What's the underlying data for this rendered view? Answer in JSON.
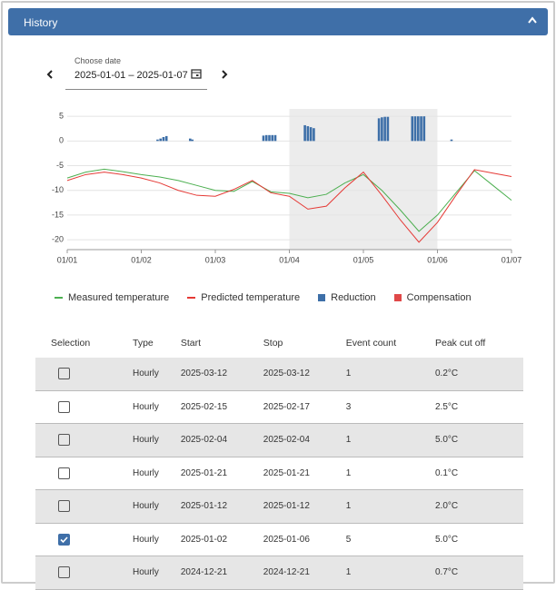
{
  "header": {
    "title": "History"
  },
  "date_picker": {
    "label": "Choose date",
    "value": "2025-01-01 – 2025-01-07"
  },
  "chart": {
    "type": "line",
    "xlim": [
      0,
      6
    ],
    "ylim": [
      -22,
      6.5
    ],
    "xticks": [
      {
        "value": 0,
        "label": "01/01"
      },
      {
        "value": 1,
        "label": "01/02"
      },
      {
        "value": 2,
        "label": "01/03"
      },
      {
        "value": 3,
        "label": "01/04"
      },
      {
        "value": 4,
        "label": "01/05"
      },
      {
        "value": 5,
        "label": "01/06"
      },
      {
        "value": 6,
        "label": "01/07"
      }
    ],
    "yticks": [
      5,
      0,
      -5,
      -10,
      -15,
      -20
    ],
    "grid": true,
    "highlight": [
      3,
      5
    ],
    "x": [
      0,
      0.25,
      0.5,
      0.75,
      1,
      1.25,
      1.5,
      1.75,
      2,
      2.25,
      2.5,
      2.75,
      3,
      3.25,
      3.5,
      3.75,
      4,
      4.25,
      4.5,
      4.75,
      5,
      5.25,
      5.5,
      5.75,
      6
    ],
    "series": [
      {
        "name": "Measured temperature",
        "color": "#4caf50",
        "values": [
          -7.5,
          -6.3,
          -5.7,
          -6.2,
          -6.8,
          -7.3,
          -8.0,
          -9.0,
          -10.0,
          -10.2,
          -8.2,
          -10.3,
          -10.6,
          -11.5,
          -10.8,
          -8.5,
          -6.8,
          -10.0,
          -14.0,
          -18.3,
          -15.0,
          -10.5,
          -6.0,
          -9.0,
          -12.0
        ]
      },
      {
        "name": "Predicted temperature",
        "color": "#e53935",
        "values": [
          -8.0,
          -6.8,
          -6.3,
          -6.8,
          -7.5,
          -8.5,
          -10.0,
          -11.0,
          -11.2,
          -9.8,
          -8.0,
          -10.5,
          -11.2,
          -13.8,
          -13.2,
          -9.5,
          -6.3,
          -11.0,
          -16.0,
          -20.5,
          -16.5,
          -11.0,
          -5.8,
          -6.5,
          -7.2
        ]
      }
    ],
    "bars": [
      {
        "name": "Reduction",
        "color": "#3d6fa8",
        "x": [
          1.22,
          1.26,
          1.3,
          1.34,
          1.66,
          1.69,
          2.65,
          2.69,
          2.73,
          2.77,
          2.81,
          3.21,
          3.25,
          3.29,
          3.33,
          4.21,
          4.25,
          4.29,
          4.33,
          4.66,
          4.7,
          4.74,
          4.78,
          4.82,
          5.19
        ],
        "values": [
          0.3,
          0.5,
          0.8,
          1.0,
          0.5,
          0.3,
          1.1,
          1.2,
          1.2,
          1.2,
          1.2,
          3.2,
          3.0,
          2.8,
          2.6,
          4.6,
          4.8,
          4.9,
          4.9,
          5.0,
          5.0,
          5.0,
          5.0,
          5.0,
          0.3
        ]
      },
      {
        "name": "Compensation",
        "color": "#e04848",
        "x": [],
        "values": []
      }
    ]
  },
  "table": {
    "headers": [
      "Selection",
      "Type",
      "Start",
      "Stop",
      "Event count",
      "Peak cut off"
    ],
    "rows": [
      {
        "checked": false,
        "cells": [
          "Hourly",
          "2025-03-12",
          "2025-03-12",
          "1",
          "0.2°C"
        ]
      },
      {
        "checked": false,
        "cells": [
          "Hourly",
          "2025-02-15",
          "2025-02-17",
          "3",
          "2.5°C"
        ]
      },
      {
        "checked": false,
        "cells": [
          "Hourly",
          "2025-02-04",
          "2025-02-04",
          "1",
          "5.0°C"
        ]
      },
      {
        "checked": false,
        "cells": [
          "Hourly",
          "2025-01-21",
          "2025-01-21",
          "1",
          "0.1°C"
        ]
      },
      {
        "checked": false,
        "cells": [
          "Hourly",
          "2025-01-12",
          "2025-01-12",
          "1",
          "2.0°C"
        ]
      },
      {
        "checked": true,
        "cells": [
          "Hourly",
          "2025-01-02",
          "2025-01-06",
          "5",
          "5.0°C"
        ]
      },
      {
        "checked": false,
        "cells": [
          "Hourly",
          "2024-12-21",
          "2024-12-21",
          "1",
          "0.7°C"
        ]
      }
    ]
  }
}
